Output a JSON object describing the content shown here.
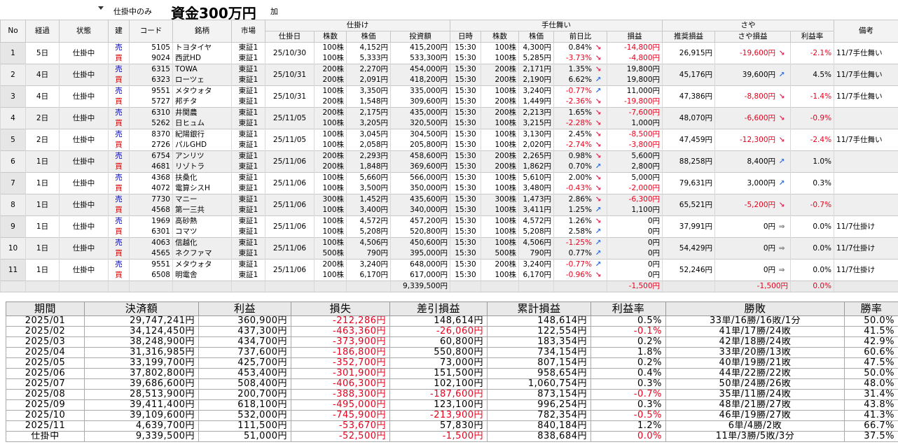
{
  "toolbar": {
    "filter": "仕掛中のみ",
    "capital": "資金300万円",
    "button": "加"
  },
  "positions": {
    "header_top": [
      "No",
      "経過",
      "状態",
      "建",
      "コード",
      "銘柄",
      "市場",
      "仕掛け",
      "手仕舞い",
      "さや",
      "備考"
    ],
    "header_sub": [
      "仕掛日",
      "株数",
      "株価",
      "投資額",
      "日時",
      "株数",
      "株価",
      "前日比",
      "損益",
      "推奨損益",
      "さや損益",
      "利益率"
    ],
    "rows": [
      {
        "no": 1,
        "elapsed": "5日",
        "status": "仕掛中",
        "entry_date": "25/10/30",
        "recommended": "26,915円",
        "spread": "-19,600円",
        "spread_arrow": "↘",
        "rate": "-2.1%",
        "note": "11/7手仕舞い",
        "legs": [
          {
            "side": "売",
            "code": "5105",
            "name": "トヨタイヤ",
            "market": "東証1",
            "shares": "100株",
            "price": "4,152円",
            "amount": "415,200円",
            "time": "15:30",
            "exit_shares": "100株",
            "exit_price": "4,300円",
            "change": "0.84%",
            "change_arrow": "↘",
            "pnl": "-14,800円"
          },
          {
            "side": "買",
            "code": "9024",
            "name": "西武HD",
            "market": "東証1",
            "shares": "100株",
            "price": "5,333円",
            "amount": "533,300円",
            "time": "15:30",
            "exit_shares": "100株",
            "exit_price": "5,285円",
            "change": "-3.73%",
            "change_arrow": "↘",
            "pnl": "-4,800円"
          }
        ]
      },
      {
        "no": 2,
        "elapsed": "4日",
        "status": "仕掛中",
        "entry_date": "25/10/31",
        "recommended": "45,176円",
        "spread": "39,600円",
        "spread_arrow": "↗",
        "rate": "4.5%",
        "note": "11/7手仕舞い",
        "legs": [
          {
            "side": "売",
            "code": "6315",
            "name": "TOWA",
            "market": "東証1",
            "shares": "200株",
            "price": "2,270円",
            "amount": "454,000円",
            "time": "15:30",
            "exit_shares": "200株",
            "exit_price": "2,171円",
            "change": "1.35%",
            "change_arrow": "↘",
            "pnl": "19,800円"
          },
          {
            "side": "買",
            "code": "6323",
            "name": "ローツェ",
            "market": "東証1",
            "shares": "200株",
            "price": "2,091円",
            "amount": "418,200円",
            "time": "15:30",
            "exit_shares": "200株",
            "exit_price": "2,190円",
            "change": "6.62%",
            "change_arrow": "↗",
            "pnl": "19,800円"
          }
        ]
      },
      {
        "no": 3,
        "elapsed": "4日",
        "status": "仕掛中",
        "entry_date": "25/10/31",
        "recommended": "47,386円",
        "spread": "-8,800円",
        "spread_arrow": "↘",
        "rate": "-1.4%",
        "note": "11/7手仕舞い",
        "legs": [
          {
            "side": "売",
            "code": "9551",
            "name": "メタウォタ",
            "market": "東証1",
            "shares": "100株",
            "price": "3,350円",
            "amount": "335,000円",
            "time": "15:30",
            "exit_shares": "100株",
            "exit_price": "3,240円",
            "change": "-0.77%",
            "change_arrow": "↗",
            "pnl": "11,000円"
          },
          {
            "side": "買",
            "code": "5727",
            "name": "邦チタ",
            "market": "東証1",
            "shares": "200株",
            "price": "1,548円",
            "amount": "309,600円",
            "time": "15:30",
            "exit_shares": "200株",
            "exit_price": "1,449円",
            "change": "-2.36%",
            "change_arrow": "↘",
            "pnl": "-19,800円"
          }
        ]
      },
      {
        "no": 4,
        "elapsed": "2日",
        "status": "仕掛中",
        "entry_date": "25/11/05",
        "recommended": "48,070円",
        "spread": "-6,600円",
        "spread_arrow": "↘",
        "rate": "-0.9%",
        "legs": [
          {
            "side": "売",
            "code": "6310",
            "name": "井関農",
            "market": "東証1",
            "shares": "200株",
            "price": "2,175円",
            "amount": "435,000円",
            "time": "15:30",
            "exit_shares": "200株",
            "exit_price": "2,213円",
            "change": "1.65%",
            "change_arrow": "↘",
            "pnl": "-7,600円"
          },
          {
            "side": "買",
            "code": "5262",
            "name": "日ヒュム",
            "market": "東証1",
            "shares": "100株",
            "price": "3,205円",
            "amount": "320,500円",
            "time": "15:30",
            "exit_shares": "100株",
            "exit_price": "3,215円",
            "change": "-2.28%",
            "change_arrow": "↘",
            "pnl": "1,000円"
          }
        ]
      },
      {
        "no": 5,
        "elapsed": "2日",
        "status": "仕掛中",
        "entry_date": "25/11/05",
        "recommended": "47,459円",
        "spread": "-12,300円",
        "spread_arrow": "↘",
        "rate": "-2.4%",
        "note": "11/7手仕舞い",
        "legs": [
          {
            "side": "売",
            "code": "8370",
            "name": "紀陽銀行",
            "market": "東証1",
            "shares": "100株",
            "price": "3,045円",
            "amount": "304,500円",
            "time": "15:30",
            "exit_shares": "100株",
            "exit_price": "3,130円",
            "change": "2.45%",
            "change_arrow": "↘",
            "pnl": "-8,500円"
          },
          {
            "side": "買",
            "code": "2726",
            "name": "パルGHD",
            "market": "東証1",
            "shares": "100株",
            "price": "2,058円",
            "amount": "205,800円",
            "time": "15:30",
            "exit_shares": "100株",
            "exit_price": "2,020円",
            "change": "-2.74%",
            "change_arrow": "↘",
            "pnl": "-3,800円"
          }
        ]
      },
      {
        "no": 6,
        "elapsed": "1日",
        "status": "仕掛中",
        "entry_date": "25/11/06",
        "recommended": "88,258円",
        "spread": "8,400円",
        "spread_arrow": "↗",
        "rate": "1.0%",
        "legs": [
          {
            "side": "売",
            "code": "6754",
            "name": "アンリツ",
            "market": "東証1",
            "shares": "200株",
            "price": "2,293円",
            "amount": "458,600円",
            "time": "15:30",
            "exit_shares": "200株",
            "exit_price": "2,265円",
            "change": "0.98%",
            "change_arrow": "↘",
            "pnl": "5,600円"
          },
          {
            "side": "買",
            "code": "4681",
            "name": "リゾトラ",
            "market": "東証1",
            "shares": "200株",
            "price": "1,848円",
            "amount": "369,600円",
            "time": "15:30",
            "exit_shares": "200株",
            "exit_price": "1,862円",
            "change": "0.70%",
            "change_arrow": "↗",
            "pnl": "2,800円"
          }
        ]
      },
      {
        "no": 7,
        "elapsed": "1日",
        "status": "仕掛中",
        "entry_date": "25/11/06",
        "recommended": "79,631円",
        "spread": "3,000円",
        "spread_arrow": "↗",
        "rate": "0.3%",
        "legs": [
          {
            "side": "売",
            "code": "4368",
            "name": "扶桑化",
            "market": "東証1",
            "shares": "100株",
            "price": "5,660円",
            "amount": "566,000円",
            "time": "15:30",
            "exit_shares": "100株",
            "exit_price": "5,610円",
            "change": "2.00%",
            "change_arrow": "↘",
            "pnl": "5,000円"
          },
          {
            "side": "買",
            "code": "4072",
            "name": "電算シスH",
            "market": "東証1",
            "shares": "100株",
            "price": "3,500円",
            "amount": "350,000円",
            "time": "15:30",
            "exit_shares": "100株",
            "exit_price": "3,480円",
            "change": "-0.43%",
            "change_arrow": "↘",
            "pnl": "-2,000円"
          }
        ]
      },
      {
        "no": 8,
        "elapsed": "1日",
        "status": "仕掛中",
        "entry_date": "25/11/06",
        "recommended": "65,521円",
        "spread": "-5,200円",
        "spread_arrow": "↘",
        "rate": "-0.7%",
        "legs": [
          {
            "side": "売",
            "code": "7730",
            "name": "マニー",
            "market": "東証1",
            "shares": "300株",
            "price": "1,452円",
            "amount": "435,600円",
            "time": "15:30",
            "exit_shares": "300株",
            "exit_price": "1,473円",
            "change": "2.86%",
            "change_arrow": "↘",
            "pnl": "-6,300円"
          },
          {
            "side": "買",
            "code": "4568",
            "name": "第一三共",
            "market": "東証1",
            "shares": "100株",
            "price": "3,400円",
            "amount": "340,000円",
            "time": "15:30",
            "exit_shares": "100株",
            "exit_price": "3,411円",
            "change": "1.25%",
            "change_arrow": "↗",
            "pnl": "1,100円"
          }
        ]
      },
      {
        "no": 9,
        "elapsed": "1日",
        "status": "仕掛中",
        "entry_date": "25/11/06",
        "recommended": "37,991円",
        "spread": "0円",
        "spread_arrow": "⇒",
        "rate": "0.0%",
        "note": "11/7仕掛け",
        "legs": [
          {
            "side": "売",
            "code": "1969",
            "name": "高砂熱",
            "market": "東証1",
            "shares": "100株",
            "price": "4,572円",
            "amount": "457,200円",
            "time": "15:30",
            "exit_shares": "100株",
            "exit_price": "4,572円",
            "change": "1.26%",
            "change_arrow": "↘",
            "pnl": "0円"
          },
          {
            "side": "買",
            "code": "6301",
            "name": "コマツ",
            "market": "東証1",
            "shares": "100株",
            "price": "5,208円",
            "amount": "520,800円",
            "time": "15:30",
            "exit_shares": "100株",
            "exit_price": "5,208円",
            "change": "2.58%",
            "change_arrow": "↗",
            "pnl": "0円"
          }
        ]
      },
      {
        "no": 10,
        "elapsed": "1日",
        "status": "仕掛中",
        "entry_date": "25/11/06",
        "recommended": "54,429円",
        "spread": "0円",
        "spread_arrow": "⇒",
        "rate": "0.0%",
        "note": "11/7仕掛け",
        "legs": [
          {
            "side": "売",
            "code": "4063",
            "name": "信越化",
            "market": "東証1",
            "shares": "100株",
            "price": "4,506円",
            "amount": "450,600円",
            "time": "15:30",
            "exit_shares": "100株",
            "exit_price": "4,506円",
            "change": "-1.25%",
            "change_arrow": "↗",
            "pnl": "0円"
          },
          {
            "side": "買",
            "code": "4565",
            "name": "ネクファマ",
            "market": "東証1",
            "shares": "500株",
            "price": "790円",
            "amount": "395,000円",
            "time": "15:30",
            "exit_shares": "500株",
            "exit_price": "790円",
            "change": "0.77%",
            "change_arrow": "↗",
            "pnl": "0円"
          }
        ]
      },
      {
        "no": 11,
        "elapsed": "1日",
        "status": "仕掛中",
        "entry_date": "25/11/06",
        "recommended": "52,246円",
        "spread": "0円",
        "spread_arrow": "⇒",
        "rate": "0.0%",
        "note": "11/7仕掛け",
        "legs": [
          {
            "side": "売",
            "code": "9551",
            "name": "メタウォタ",
            "market": "東証1",
            "shares": "200株",
            "price": "3,240円",
            "amount": "648,000円",
            "time": "15:30",
            "exit_shares": "200株",
            "exit_price": "3,240円",
            "change": "-0.77%",
            "change_arrow": "↗",
            "pnl": "0円"
          },
          {
            "side": "買",
            "code": "6508",
            "name": "明電舎",
            "market": "東証1",
            "shares": "100株",
            "price": "6,170円",
            "amount": "617,000円",
            "time": "15:30",
            "exit_shares": "100株",
            "exit_price": "6,170円",
            "change": "-0.96%",
            "change_arrow": "↘",
            "pnl": "0円"
          }
        ]
      }
    ],
    "total": {
      "amount": "9,339,500円",
      "pnl": "-1,500円",
      "spread": "-1,500円",
      "rate": "0.0%"
    }
  },
  "summary": {
    "headers": [
      "期間",
      "決済額",
      "利益",
      "損失",
      "差引損益",
      "累計損益",
      "利益率",
      "勝敗",
      "勝率"
    ],
    "rows": [
      [
        "2025/01",
        "29,747,241円",
        "360,900円",
        "-212,286円",
        "148,614円",
        "148,614円",
        "0.5%",
        "33単/16勝/16敗/1分",
        "50.0%"
      ],
      [
        "2025/02",
        "34,124,450円",
        "437,300円",
        "-463,360円",
        "-26,060円",
        "122,554円",
        "-0.1%",
        "41単/17勝/24敗",
        "41.5%"
      ],
      [
        "2025/03",
        "38,248,900円",
        "434,700円",
        "-373,900円",
        "60,800円",
        "183,354円",
        "0.2%",
        "42単/18勝/24敗",
        "42.9%"
      ],
      [
        "2025/04",
        "31,316,985円",
        "737,600円",
        "-186,800円",
        "550,800円",
        "734,154円",
        "1.8%",
        "33単/20勝/13敗",
        "60.6%"
      ],
      [
        "2025/05",
        "33,199,700円",
        "425,700円",
        "-352,700円",
        "73,000円",
        "807,154円",
        "0.2%",
        "40単/19勝/21敗",
        "47.5%"
      ],
      [
        "2025/06",
        "37,802,800円",
        "453,400円",
        "-301,900円",
        "151,500円",
        "958,654円",
        "0.4%",
        "44単/22勝/22敗",
        "50.0%"
      ],
      [
        "2025/07",
        "39,686,600円",
        "508,400円",
        "-406,300円",
        "102,100円",
        "1,060,754円",
        "0.3%",
        "50単/24勝/26敗",
        "48.0%"
      ],
      [
        "2025/08",
        "28,513,900円",
        "200,700円",
        "-388,300円",
        "-187,600円",
        "873,154円",
        "-0.7%",
        "35単/11勝/24敗",
        "31.4%"
      ],
      [
        "2025/09",
        "39,411,400円",
        "618,100円",
        "-495,000円",
        "123,100円",
        "996,254円",
        "0.3%",
        "48単/21勝/27敗",
        "43.8%"
      ],
      [
        "2025/10",
        "39,109,600円",
        "532,000円",
        "-745,900円",
        "-213,900円",
        "782,354円",
        "-0.5%",
        "46単/19勝/27敗",
        "41.3%"
      ],
      [
        "2025/11",
        "4,639,700円",
        "111,500円",
        "-53,670円",
        "57,830円",
        "840,184円",
        "1.2%",
        "6単/4勝/2敗",
        "66.7%"
      ],
      [
        "仕掛中",
        "9,339,500円",
        "51,000円",
        "-52,500円",
        "-1,500円",
        "838,684円",
        "0.0%",
        "11単/3勝/5敗/3分",
        "37.5%"
      ]
    ]
  }
}
